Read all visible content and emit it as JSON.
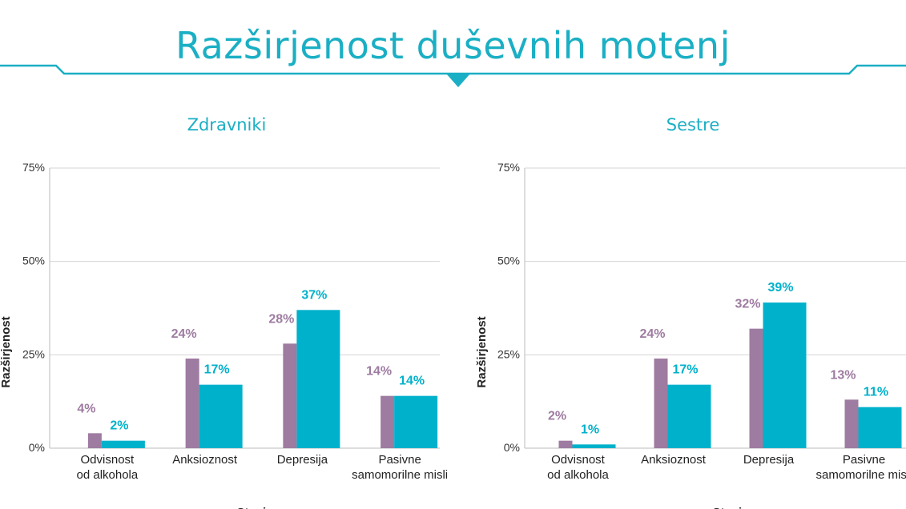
{
  "page_title": "Razširjenost duševnih motenj",
  "colors": {
    "teal": "#00b1cb",
    "purple": "#9e7ba0",
    "title": "#1aafc4",
    "grid": "#d4d4d4"
  },
  "chart_data": [
    {
      "type": "bar",
      "title": "Zdravniki",
      "ylabel": "Razširjenost",
      "xlabel": "Stanje",
      "ylim": [
        0,
        75
      ],
      "yticks": [
        0,
        25,
        50,
        75
      ],
      "ytick_labels": [
        "0%",
        "25%",
        "50%",
        "75%"
      ],
      "grid": true,
      "categories": [
        [
          "Odvisnost",
          "od alkohola"
        ],
        [
          "Anksioznost"
        ],
        [
          "Depresija"
        ],
        [
          "Pasivne",
          "samomorilne misli"
        ]
      ],
      "series": [
        {
          "values": [
            4,
            24,
            28,
            14
          ],
          "labels": [
            "4%",
            "24%",
            "28%",
            "14%"
          ],
          "color": "#9e7ba0"
        },
        {
          "values": [
            2,
            17,
            37,
            14
          ],
          "labels": [
            "2%",
            "17%",
            "37%",
            "14%"
          ],
          "color": "#00b1cb"
        }
      ]
    },
    {
      "type": "bar",
      "title": "Sestre",
      "ylabel": "Razširjenost",
      "xlabel": "Stanje",
      "ylim": [
        0,
        75
      ],
      "yticks": [
        0,
        25,
        50,
        75
      ],
      "ytick_labels": [
        "0%",
        "25%",
        "50%",
        "75%"
      ],
      "grid": true,
      "categories": [
        [
          "Odvisnost",
          "od alkohola"
        ],
        [
          "Anksioznost"
        ],
        [
          "Depresija"
        ],
        [
          "Pasivne",
          "samomorilne misli"
        ]
      ],
      "series": [
        {
          "values": [
            2,
            24,
            32,
            13
          ],
          "labels": [
            "2%",
            "24%",
            "32%",
            "13%"
          ],
          "color": "#9e7ba0"
        },
        {
          "values": [
            1,
            17,
            39,
            11
          ],
          "labels": [
            "1%",
            "17%",
            "39%",
            "11%"
          ],
          "color": "#00b1cb"
        }
      ]
    }
  ]
}
